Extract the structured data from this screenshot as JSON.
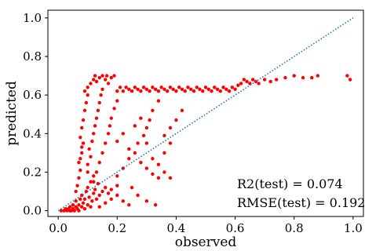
{
  "chart_data": {
    "type": "scatter",
    "title": "",
    "xlabel": "observed",
    "ylabel": "predicted",
    "xlim": [
      -0.035,
      1.035
    ],
    "ylim": [
      -0.03,
      1.04
    ],
    "xticks": [
      0.0,
      0.2,
      0.4,
      0.6,
      0.8,
      1.0
    ],
    "yticks": [
      0.0,
      0.2,
      0.4,
      0.6,
      0.8,
      1.0
    ],
    "xtick_labels": [
      "0.0",
      "0.2",
      "0.4",
      "0.6",
      "0.8",
      "1.0"
    ],
    "ytick_labels": [
      "0.0",
      "0.2",
      "0.4",
      "0.6",
      "0.8",
      "1.0"
    ],
    "grid": false,
    "annotations": [
      "R2(test) = 0.074",
      "RMSE(test) = 0.192"
    ],
    "reference_line": {
      "x": [
        0.0,
        1.0
      ],
      "y": [
        0.0,
        1.0
      ],
      "style": "dotted",
      "color": "#1f77b4"
    },
    "series": [
      {
        "color": "#ff0000",
        "points": [
          [
            0.01,
            0.0
          ],
          [
            0.02,
            0.0
          ],
          [
            0.025,
            0.01
          ],
          [
            0.03,
            0.0
          ],
          [
            0.035,
            0.01
          ],
          [
            0.04,
            0.0
          ],
          [
            0.04,
            0.02
          ],
          [
            0.045,
            0.0
          ],
          [
            0.05,
            0.01
          ],
          [
            0.05,
            0.03
          ],
          [
            0.055,
            0.0
          ],
          [
            0.06,
            0.02
          ],
          [
            0.06,
            0.05
          ],
          [
            0.065,
            0.01
          ],
          [
            0.07,
            0.0
          ],
          [
            0.07,
            0.03
          ],
          [
            0.075,
            0.06
          ],
          [
            0.08,
            0.02
          ],
          [
            0.08,
            0.08
          ],
          [
            0.085,
            0.04
          ],
          [
            0.09,
            0.01
          ],
          [
            0.09,
            0.06
          ],
          [
            0.095,
            0.1
          ],
          [
            0.1,
            0.03
          ],
          [
            0.1,
            0.12
          ],
          [
            0.105,
            0.07
          ],
          [
            0.11,
            0.02
          ],
          [
            0.11,
            0.15
          ],
          [
            0.115,
            0.05
          ],
          [
            0.12,
            0.09
          ],
          [
            0.12,
            0.18
          ],
          [
            0.125,
            0.11
          ],
          [
            0.13,
            0.06
          ],
          [
            0.135,
            0.14
          ],
          [
            0.14,
            0.08
          ],
          [
            0.15,
            0.1
          ],
          [
            0.16,
            0.12
          ],
          [
            0.17,
            0.09
          ],
          [
            0.18,
            0.11
          ],
          [
            0.2,
            0.13
          ],
          [
            0.06,
            0.1
          ],
          [
            0.065,
            0.13
          ],
          [
            0.07,
            0.17
          ],
          [
            0.075,
            0.21
          ],
          [
            0.07,
            0.25
          ],
          [
            0.075,
            0.27
          ],
          [
            0.08,
            0.3
          ],
          [
            0.08,
            0.33
          ],
          [
            0.085,
            0.35
          ],
          [
            0.075,
            0.38
          ],
          [
            0.08,
            0.43
          ],
          [
            0.085,
            0.47
          ],
          [
            0.09,
            0.52
          ],
          [
            0.095,
            0.56
          ],
          [
            0.1,
            0.6
          ],
          [
            0.09,
            0.62
          ],
          [
            0.1,
            0.64
          ],
          [
            0.11,
            0.66
          ],
          [
            0.12,
            0.68
          ],
          [
            0.125,
            0.7
          ],
          [
            0.13,
            0.67
          ],
          [
            0.14,
            0.69
          ],
          [
            0.15,
            0.7
          ],
          [
            0.16,
            0.68
          ],
          [
            0.165,
            0.7
          ],
          [
            0.17,
            0.66
          ],
          [
            0.18,
            0.69
          ],
          [
            0.19,
            0.7
          ],
          [
            0.1,
            0.2
          ],
          [
            0.1,
            0.24
          ],
          [
            0.11,
            0.28
          ],
          [
            0.105,
            0.32
          ],
          [
            0.115,
            0.36
          ],
          [
            0.12,
            0.4
          ],
          [
            0.125,
            0.44
          ],
          [
            0.13,
            0.48
          ],
          [
            0.135,
            0.52
          ],
          [
            0.14,
            0.56
          ],
          [
            0.145,
            0.6
          ],
          [
            0.15,
            0.63
          ],
          [
            0.12,
            0.15
          ],
          [
            0.13,
            0.2
          ],
          [
            0.14,
            0.25
          ],
          [
            0.15,
            0.3
          ],
          [
            0.16,
            0.35
          ],
          [
            0.17,
            0.4
          ],
          [
            0.175,
            0.44
          ],
          [
            0.18,
            0.48
          ],
          [
            0.19,
            0.53
          ],
          [
            0.2,
            0.57
          ],
          [
            0.2,
            0.62
          ],
          [
            0.21,
            0.64
          ],
          [
            0.22,
            0.62
          ],
          [
            0.23,
            0.64
          ],
          [
            0.24,
            0.63
          ],
          [
            0.25,
            0.62
          ],
          [
            0.26,
            0.64
          ],
          [
            0.27,
            0.63
          ],
          [
            0.28,
            0.62
          ],
          [
            0.29,
            0.64
          ],
          [
            0.3,
            0.63
          ],
          [
            0.31,
            0.62
          ],
          [
            0.32,
            0.64
          ],
          [
            0.33,
            0.63
          ],
          [
            0.34,
            0.62
          ],
          [
            0.35,
            0.64
          ],
          [
            0.36,
            0.63
          ],
          [
            0.37,
            0.62
          ],
          [
            0.38,
            0.64
          ],
          [
            0.39,
            0.63
          ],
          [
            0.4,
            0.62
          ],
          [
            0.41,
            0.64
          ],
          [
            0.42,
            0.63
          ],
          [
            0.43,
            0.62
          ],
          [
            0.44,
            0.64
          ],
          [
            0.45,
            0.63
          ],
          [
            0.46,
            0.62
          ],
          [
            0.47,
            0.64
          ],
          [
            0.48,
            0.63
          ],
          [
            0.49,
            0.62
          ],
          [
            0.5,
            0.64
          ],
          [
            0.51,
            0.63
          ],
          [
            0.52,
            0.62
          ],
          [
            0.53,
            0.64
          ],
          [
            0.54,
            0.63
          ],
          [
            0.55,
            0.62
          ],
          [
            0.56,
            0.64
          ],
          [
            0.57,
            0.63
          ],
          [
            0.58,
            0.62
          ],
          [
            0.59,
            0.64
          ],
          [
            0.6,
            0.63
          ],
          [
            0.61,
            0.65
          ],
          [
            0.62,
            0.66
          ],
          [
            0.63,
            0.68
          ],
          [
            0.64,
            0.67
          ],
          [
            0.65,
            0.66
          ],
          [
            0.66,
            0.68
          ],
          [
            0.67,
            0.67
          ],
          [
            0.68,
            0.66
          ],
          [
            0.7,
            0.68
          ],
          [
            0.72,
            0.67
          ],
          [
            0.74,
            0.68
          ],
          [
            0.77,
            0.69
          ],
          [
            0.8,
            0.7
          ],
          [
            0.83,
            0.69
          ],
          [
            0.86,
            0.69
          ],
          [
            0.88,
            0.7
          ],
          [
            0.98,
            0.7
          ],
          [
            0.99,
            0.68
          ],
          [
            0.2,
            0.18
          ],
          [
            0.22,
            0.22
          ],
          [
            0.24,
            0.27
          ],
          [
            0.26,
            0.3
          ],
          [
            0.27,
            0.35
          ],
          [
            0.29,
            0.39
          ],
          [
            0.3,
            0.43
          ],
          [
            0.31,
            0.47
          ],
          [
            0.32,
            0.52
          ],
          [
            0.34,
            0.57
          ],
          [
            0.28,
            0.25
          ],
          [
            0.3,
            0.22
          ],
          [
            0.32,
            0.19
          ],
          [
            0.34,
            0.17
          ],
          [
            0.36,
            0.2
          ],
          [
            0.38,
            0.17
          ],
          [
            0.25,
            0.12
          ],
          [
            0.27,
            0.08
          ],
          [
            0.3,
            0.05
          ],
          [
            0.33,
            0.03
          ],
          [
            0.2,
            0.08
          ],
          [
            0.22,
            0.05
          ],
          [
            0.24,
            0.03
          ],
          [
            0.18,
            0.06
          ],
          [
            0.16,
            0.04
          ],
          [
            0.14,
            0.02
          ],
          [
            0.36,
            0.39
          ],
          [
            0.38,
            0.43
          ],
          [
            0.4,
            0.47
          ],
          [
            0.42,
            0.52
          ],
          [
            0.2,
            0.36
          ],
          [
            0.22,
            0.4
          ],
          [
            0.24,
            0.32
          ],
          [
            0.26,
            0.44
          ],
          [
            0.28,
            0.48
          ],
          [
            0.3,
            0.35
          ],
          [
            0.32,
            0.27
          ],
          [
            0.34,
            0.24
          ],
          [
            0.36,
            0.3
          ],
          [
            0.38,
            0.35
          ]
        ]
      }
    ]
  }
}
